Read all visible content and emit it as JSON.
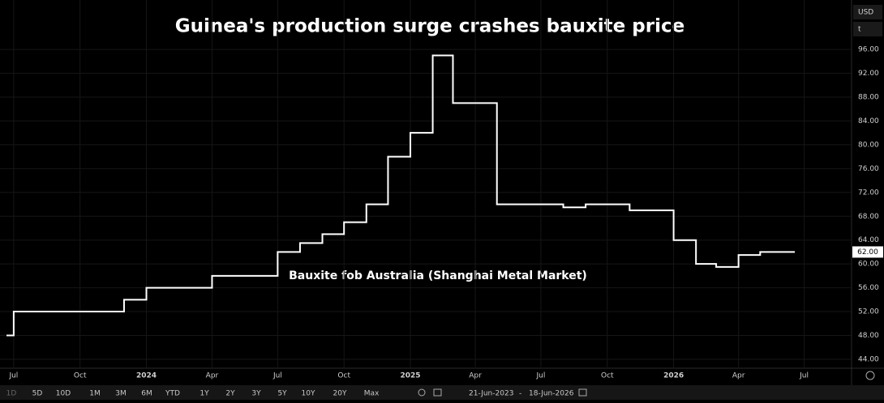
{
  "chart_data": {
    "type": "line",
    "step": true,
    "title": "Guinea's production surge crashes bauxite price",
    "annotation": "Bauxite fob Australia (Shanghai Metal Market)",
    "color": "#ffffff",
    "x": [
      "2023-06",
      "2023-07",
      "2023-08",
      "2023-09",
      "2023-10",
      "2023-11",
      "2023-12",
      "2024-01",
      "2024-02",
      "2024-03",
      "2024-04",
      "2024-05",
      "2024-06",
      "2024-07",
      "2024-08",
      "2024-09",
      "2024-10",
      "2024-11",
      "2024-12",
      "2025-01",
      "2025-02",
      "2025-03",
      "2025-04",
      "2025-05",
      "2025-06",
      "2025-07",
      "2025-08",
      "2025-09",
      "2025-10",
      "2025-11",
      "2025-12",
      "2026-01",
      "2026-02",
      "2026-03",
      "2026-04",
      "2026-05",
      "2026-06"
    ],
    "values": [
      48,
      52,
      52,
      52,
      52,
      52,
      54,
      56,
      56,
      56,
      58,
      58,
      58,
      62,
      63.5,
      65,
      67,
      70,
      78,
      82,
      95,
      87,
      87,
      70,
      70,
      70,
      69.5,
      70,
      70,
      69,
      69,
      64,
      60,
      59.5,
      61.5,
      62,
      62
    ],
    "last_value_label": "62.00",
    "ylim": [
      42.5,
      104.3
    ],
    "yticks": [
      {
        "value": 44,
        "label": "44.00"
      },
      {
        "value": 48,
        "label": "48.00"
      },
      {
        "value": 52,
        "label": "52.00"
      },
      {
        "value": 56,
        "label": "56.00"
      },
      {
        "value": 60,
        "label": "60.00"
      },
      {
        "value": 64,
        "label": "64.00"
      },
      {
        "value": 68,
        "label": "68.00"
      },
      {
        "value": 72,
        "label": "72.00"
      },
      {
        "value": 76,
        "label": "76.00"
      },
      {
        "value": 80,
        "label": "80.00"
      },
      {
        "value": 84,
        "label": "84.00"
      },
      {
        "value": 88,
        "label": "88.00"
      },
      {
        "value": 92,
        "label": "92.00"
      },
      {
        "value": 96,
        "label": "96.00"
      }
    ],
    "xticks": [
      {
        "value": "2023-07",
        "label": "Jul"
      },
      {
        "value": "2023-10",
        "label": "Oct"
      },
      {
        "value": "2024-01",
        "label": "2024"
      },
      {
        "value": "2024-04",
        "label": "Apr"
      },
      {
        "value": "2024-07",
        "label": "Jul"
      },
      {
        "value": "2024-10",
        "label": "Oct"
      },
      {
        "value": "2025-01",
        "label": "2025"
      },
      {
        "value": "2025-04",
        "label": "Apr"
      },
      {
        "value": "2025-07",
        "label": "Jul"
      },
      {
        "value": "2025-10",
        "label": "Oct"
      },
      {
        "value": "2026-01",
        "label": "2026"
      },
      {
        "value": "2026-04",
        "label": "Apr"
      },
      {
        "value": "2026-07",
        "label": "Jul"
      }
    ],
    "grid": true
  },
  "units": {
    "currency": "USD",
    "unit": "t"
  },
  "toolbar": {
    "ranges": [
      "1D",
      "5D",
      "10D",
      "1M",
      "3M",
      "6M",
      "YTD",
      "1Y",
      "2Y",
      "3Y",
      "5Y",
      "10Y",
      "20Y",
      "Max"
    ],
    "date_range": {
      "from": "21-Jun-2023",
      "separator": "-",
      "to": "18-Jun-2026"
    }
  }
}
